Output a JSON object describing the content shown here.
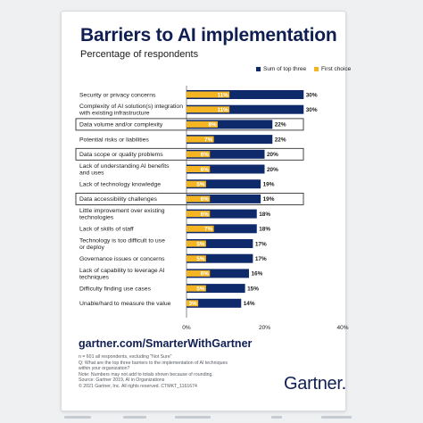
{
  "colors": {
    "navy": "#0f2a6b",
    "gold": "#f5b523",
    "title": "#0f1f52"
  },
  "header": {
    "title": "Barriers to AI implementation",
    "subtitle": "Percentage of respondents"
  },
  "legend": {
    "sum": "Sum of top three",
    "first": "First choice"
  },
  "chart_data": {
    "type": "bar",
    "orientation": "horizontal",
    "stacked": "overlay",
    "categories": [
      [
        "Security or privacy concerns"
      ],
      [
        "Complexity of AI solution(s) integration",
        "with existing infrastructure"
      ],
      [
        "Data volume and/or complexity"
      ],
      [
        "Potential risks or liabilities"
      ],
      [
        "Data scope or quality problems"
      ],
      [
        "Lack of understanding AI benefits",
        "and uses"
      ],
      [
        "Lack of technology knowledge"
      ],
      [
        "Data accessibility challenges"
      ],
      [
        "Little improvement over existing",
        "technologies"
      ],
      [
        "Lack of skills of staff"
      ],
      [
        "Technology is too difficult to use",
        "or deploy"
      ],
      [
        "Governance issues or concerns"
      ],
      [
        "Lack of capability to leverage AI",
        "techniques"
      ],
      [
        "Difficulty finding use cases"
      ],
      [
        "Unable/hard to measure the value"
      ]
    ],
    "series": [
      {
        "name": "Sum of top three",
        "values": [
          30,
          30,
          22,
          22,
          20,
          20,
          19,
          19,
          18,
          18,
          17,
          17,
          16,
          15,
          14
        ]
      },
      {
        "name": "First choice",
        "values": [
          11,
          11,
          8,
          7,
          6,
          6,
          5,
          6,
          6,
          7,
          5,
          5,
          6,
          5,
          3
        ]
      }
    ],
    "highlighted": [
      2,
      4,
      7
    ],
    "xlim": [
      0,
      40
    ],
    "xticks": [
      "0%",
      "20%",
      "40%"
    ],
    "value_suffix": "%",
    "legend_position": "top-right",
    "grid": false
  },
  "footer": {
    "url": "gartner.com/SmarterWithGartner",
    "notes": [
      "n = 601 all respondents, excluding \"Not Sure\"",
      "Q: What are the top three barriers to the implementation of AI techniques",
      "within your organization?",
      "Note: Numbers may not add to totals shown because of rounding.",
      "Source: Gartner 2019, AI in Organizations",
      "© 2021 Gartner, Inc. All rights reserved. CTMKT_1161674"
    ],
    "logo": "Gartner."
  }
}
